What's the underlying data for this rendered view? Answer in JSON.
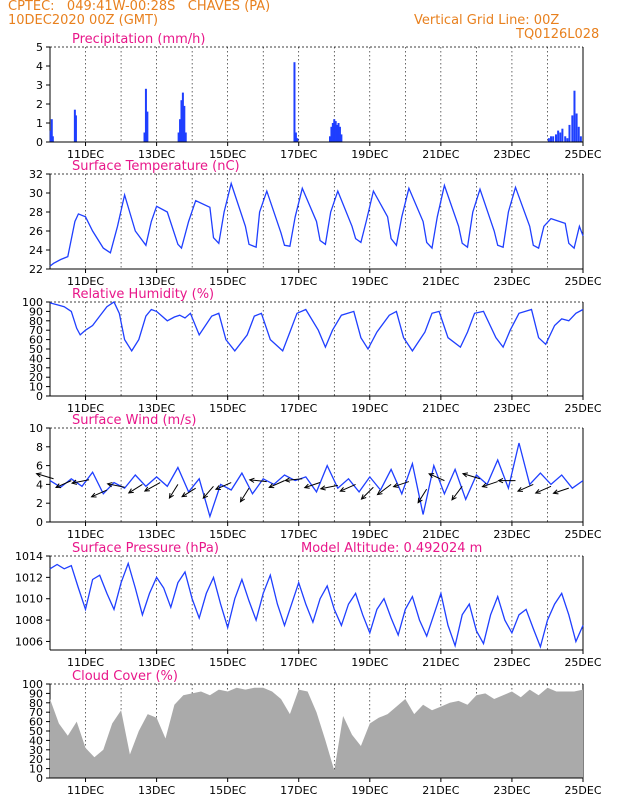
{
  "header": {
    "line1": "CPTEC:   049:41W-00:28S   CHAVES (PA)",
    "line2": "10DEC2020 00Z (GMT)",
    "right1": "Vertical Grid Line: 00Z",
    "right2": "TQ0126L028"
  },
  "colors": {
    "header": "#e8801e",
    "title": "#e8178a",
    "series": "#1f3fff",
    "cloud": "#aaaaaa",
    "axis": "#000000"
  },
  "x_axis": {
    "start": "10DEC 00Z",
    "end": "25DEC 00Z",
    "tick_labels": [
      "11DEC",
      "13DEC",
      "15DEC",
      "17DEC",
      "19DEC",
      "21DEC",
      "23DEC",
      "25DEC"
    ],
    "tick_days": [
      1,
      3,
      5,
      7,
      9,
      11,
      13,
      15
    ],
    "vertical_grid": "00Z daily"
  },
  "chart_data": [
    {
      "id": "precip",
      "type": "bar",
      "title": "Precipitation (mm/h)",
      "ylim": [
        0,
        5
      ],
      "yticks": [
        0,
        1,
        2,
        3,
        4,
        5
      ],
      "x": [
        0.02,
        0.05,
        0.08,
        0.7,
        0.73,
        2.66,
        2.7,
        2.74,
        3.62,
        3.66,
        3.7,
        3.74,
        3.78,
        3.82,
        6.88,
        6.92,
        6.96,
        7.88,
        7.92,
        7.96,
        8.0,
        8.04,
        8.08,
        8.12,
        8.16,
        8.2,
        14.04,
        14.1,
        14.16,
        14.24,
        14.3,
        14.36,
        14.42,
        14.5,
        14.56,
        14.62,
        14.7,
        14.76,
        14.82,
        14.88,
        14.94
      ],
      "values": [
        0.6,
        1.2,
        0.3,
        1.7,
        1.4,
        0.5,
        2.8,
        1.6,
        0.5,
        1.2,
        2.2,
        2.6,
        1.9,
        0.5,
        4.2,
        0.5,
        0.2,
        0.3,
        0.8,
        1.0,
        1.2,
        1.1,
        0.9,
        1.0,
        0.8,
        0.4,
        0.2,
        0.3,
        0.3,
        0.4,
        0.6,
        0.5,
        0.7,
        0.3,
        0.2,
        0.9,
        1.4,
        2.7,
        1.5,
        0.8,
        0.3
      ]
    },
    {
      "id": "temp",
      "type": "line",
      "title": "Surface Temperature (nC)",
      "ylim": [
        22,
        32
      ],
      "yticks": [
        22,
        24,
        26,
        28,
        30,
        32
      ],
      "x": [
        0,
        0.1,
        0.3,
        0.5,
        0.7,
        0.8,
        1.0,
        1.2,
        1.5,
        1.7,
        1.9,
        2.1,
        2.4,
        2.7,
        2.85,
        3.0,
        3.3,
        3.6,
        3.7,
        3.9,
        4.1,
        4.5,
        4.6,
        4.75,
        4.9,
        5.1,
        5.5,
        5.6,
        5.8,
        5.9,
        6.1,
        6.5,
        6.6,
        6.75,
        6.9,
        7.1,
        7.5,
        7.6,
        7.75,
        7.9,
        8.1,
        8.5,
        8.6,
        8.75,
        8.9,
        9.1,
        9.5,
        9.6,
        9.75,
        9.9,
        10.1,
        10.5,
        10.6,
        10.75,
        10.9,
        11.1,
        11.5,
        11.6,
        11.75,
        11.9,
        12.1,
        12.5,
        12.6,
        12.75,
        12.9,
        13.1,
        13.5,
        13.6,
        13.75,
        13.9,
        14.1,
        14.5,
        14.6,
        14.75,
        14.9,
        15.0
      ],
      "values": [
        22.3,
        22.6,
        23.0,
        23.3,
        27.0,
        27.8,
        27.5,
        26.0,
        24.2,
        23.7,
        26.5,
        29.8,
        26.0,
        24.5,
        27.0,
        28.6,
        28.0,
        24.6,
        24.2,
        27.0,
        29.2,
        28.5,
        25.3,
        24.7,
        28.0,
        31.0,
        26.5,
        24.6,
        24.3,
        28.0,
        30.2,
        25.8,
        24.5,
        24.4,
        27.5,
        30.5,
        27.0,
        25.0,
        24.6,
        28.0,
        30.2,
        26.5,
        25.2,
        24.8,
        27.0,
        30.2,
        27.5,
        25.2,
        24.5,
        27.5,
        30.5,
        27.0,
        24.8,
        24.2,
        27.5,
        30.8,
        26.5,
        24.7,
        24.3,
        28.0,
        30.4,
        26.0,
        24.5,
        24.3,
        28.0,
        30.6,
        26.5,
        24.5,
        24.2,
        26.5,
        27.3,
        26.8,
        24.7,
        24.2,
        26.5,
        25.5
      ]
    },
    {
      "id": "rh",
      "type": "line",
      "title": "Relative Humidity (%)",
      "ylim": [
        0,
        100
      ],
      "yticks": [
        0,
        10,
        20,
        30,
        40,
        50,
        60,
        70,
        80,
        90,
        100
      ],
      "x": [
        0,
        0.2,
        0.4,
        0.6,
        0.75,
        0.85,
        1.0,
        1.2,
        1.4,
        1.6,
        1.8,
        1.95,
        2.1,
        2.3,
        2.5,
        2.7,
        2.85,
        3.0,
        3.3,
        3.5,
        3.65,
        3.8,
        3.95,
        4.2,
        4.55,
        4.75,
        4.95,
        5.2,
        5.55,
        5.75,
        5.95,
        6.2,
        6.55,
        6.75,
        6.95,
        7.2,
        7.55,
        7.75,
        7.95,
        8.2,
        8.55,
        8.75,
        8.95,
        9.2,
        9.55,
        9.75,
        9.95,
        10.2,
        10.55,
        10.75,
        10.95,
        11.2,
        11.55,
        11.75,
        11.95,
        12.2,
        12.55,
        12.75,
        12.95,
        13.2,
        13.55,
        13.75,
        13.95,
        14.2,
        14.4,
        14.6,
        14.8,
        15.0
      ],
      "values": [
        99,
        97,
        95,
        90,
        72,
        65,
        70,
        75,
        85,
        95,
        100,
        88,
        60,
        48,
        60,
        85,
        92,
        90,
        80,
        84,
        86,
        83,
        88,
        65,
        85,
        88,
        60,
        48,
        65,
        85,
        88,
        60,
        48,
        68,
        88,
        92,
        70,
        52,
        70,
        86,
        90,
        62,
        50,
        68,
        86,
        90,
        62,
        48,
        68,
        88,
        90,
        62,
        52,
        68,
        88,
        90,
        62,
        52,
        70,
        88,
        92,
        62,
        55,
        75,
        82,
        80,
        88,
        92
      ]
    },
    {
      "id": "wind",
      "type": "line",
      "title": "Surface Wind (m/s)",
      "ylim": [
        0,
        10
      ],
      "yticks": [
        0,
        2,
        4,
        6,
        8,
        10
      ],
      "x": [
        0,
        0.3,
        0.6,
        0.9,
        1.2,
        1.5,
        1.8,
        2.1,
        2.4,
        2.7,
        3.0,
        3.3,
        3.6,
        3.9,
        4.2,
        4.5,
        4.8,
        5.1,
        5.4,
        5.7,
        6.0,
        6.3,
        6.6,
        6.9,
        7.2,
        7.5,
        7.8,
        8.1,
        8.4,
        8.7,
        9.0,
        9.3,
        9.6,
        9.9,
        10.2,
        10.5,
        10.8,
        11.1,
        11.4,
        11.7,
        12.0,
        12.3,
        12.6,
        12.9,
        13.2,
        13.5,
        13.8,
        14.1,
        14.4,
        14.7,
        15.0
      ],
      "values": [
        4.4,
        3.7,
        4.6,
        3.8,
        5.3,
        3.0,
        4.2,
        3.6,
        5.0,
        3.8,
        4.8,
        3.8,
        5.8,
        3.2,
        4.6,
        0.6,
        4.0,
        3.4,
        5.2,
        3.0,
        4.6,
        4.0,
        5.0,
        4.4,
        4.8,
        3.2,
        6.0,
        3.6,
        4.6,
        3.2,
        4.8,
        3.4,
        5.6,
        3.0,
        6.2,
        0.8,
        6.0,
        3.0,
        5.6,
        2.4,
        5.0,
        4.0,
        6.6,
        3.6,
        8.4,
        4.0,
        5.2,
        4.0,
        5.0,
        3.6,
        4.4
      ],
      "barbs": [
        {
          "x": 0.1,
          "speed": 4.6,
          "dx": -1.0,
          "dy": 0.3
        },
        {
          "x": 0.6,
          "speed": 4.4,
          "dx": -0.9,
          "dy": -0.4
        },
        {
          "x": 1.1,
          "speed": 4.5,
          "dx": -1.0,
          "dy": -0.2
        },
        {
          "x": 1.6,
          "speed": 3.4,
          "dx": -0.9,
          "dy": -0.4
        },
        {
          "x": 2.1,
          "speed": 3.7,
          "dx": -1.0,
          "dy": 0.2
        },
        {
          "x": 2.6,
          "speed": 4.0,
          "dx": -0.8,
          "dy": -0.5
        },
        {
          "x": 3.1,
          "speed": 4.2,
          "dx": -0.9,
          "dy": -0.5
        },
        {
          "x": 3.6,
          "speed": 4.0,
          "dx": -0.5,
          "dy": -0.8
        },
        {
          "x": 4.1,
          "speed": 3.6,
          "dx": -0.8,
          "dy": -0.5
        },
        {
          "x": 4.6,
          "speed": 3.8,
          "dx": -0.6,
          "dy": -0.7
        },
        {
          "x": 5.1,
          "speed": 4.2,
          "dx": -0.9,
          "dy": -0.4
        },
        {
          "x": 5.6,
          "speed": 3.6,
          "dx": -0.5,
          "dy": -0.8
        },
        {
          "x": 6.1,
          "speed": 4.3,
          "dx": -1.0,
          "dy": 0.1
        },
        {
          "x": 6.6,
          "speed": 4.4,
          "dx": -0.9,
          "dy": -0.4
        },
        {
          "x": 7.1,
          "speed": 4.6,
          "dx": -1.0,
          "dy": -0.1
        },
        {
          "x": 7.6,
          "speed": 4.2,
          "dx": -0.9,
          "dy": -0.3
        },
        {
          "x": 8.1,
          "speed": 3.9,
          "dx": -1.0,
          "dy": -0.2
        },
        {
          "x": 8.6,
          "speed": 4.0,
          "dx": -0.9,
          "dy": -0.4
        },
        {
          "x": 9.1,
          "speed": 3.7,
          "dx": -0.7,
          "dy": -0.7
        },
        {
          "x": 9.6,
          "speed": 4.0,
          "dx": -0.8,
          "dy": -0.6
        },
        {
          "x": 10.1,
          "speed": 4.3,
          "dx": -0.9,
          "dy": -0.3
        },
        {
          "x": 10.6,
          "speed": 3.5,
          "dx": -0.5,
          "dy": -0.8
        },
        {
          "x": 11.1,
          "speed": 4.4,
          "dx": -0.9,
          "dy": 0.4
        },
        {
          "x": 11.6,
          "speed": 3.8,
          "dx": -0.6,
          "dy": -0.8
        },
        {
          "x": 12.1,
          "speed": 4.6,
          "dx": -1.0,
          "dy": 0.3
        },
        {
          "x": 12.6,
          "speed": 4.3,
          "dx": -0.9,
          "dy": -0.3
        },
        {
          "x": 13.1,
          "speed": 4.4,
          "dx": -1.0,
          "dy": 0.0
        },
        {
          "x": 13.6,
          "speed": 4.0,
          "dx": -0.9,
          "dy": -0.4
        },
        {
          "x": 14.1,
          "speed": 3.8,
          "dx": -0.9,
          "dy": -0.4
        },
        {
          "x": 14.6,
          "speed": 3.6,
          "dx": -0.9,
          "dy": -0.3
        }
      ]
    },
    {
      "id": "pressure",
      "type": "line",
      "title": "Surface Pressure (hPa)",
      "annotation": "Model Altitude: 0.492024 m",
      "ylim": [
        1005.2,
        1014
      ],
      "yticks": [
        1006,
        1008,
        1010,
        1012,
        1014
      ],
      "x": [
        0,
        0.2,
        0.4,
        0.6,
        0.8,
        1.0,
        1.2,
        1.4,
        1.6,
        1.8,
        2.0,
        2.2,
        2.4,
        2.6,
        2.8,
        3.0,
        3.2,
        3.4,
        3.6,
        3.8,
        4.0,
        4.2,
        4.4,
        4.6,
        4.8,
        5.0,
        5.2,
        5.4,
        5.6,
        5.8,
        6.0,
        6.2,
        6.4,
        6.6,
        6.8,
        7.0,
        7.2,
        7.4,
        7.6,
        7.8,
        8.0,
        8.2,
        8.4,
        8.6,
        8.8,
        9.0,
        9.2,
        9.4,
        9.6,
        9.8,
        10.0,
        10.2,
        10.4,
        10.6,
        10.8,
        11.0,
        11.2,
        11.4,
        11.6,
        11.8,
        12.0,
        12.2,
        12.4,
        12.6,
        12.8,
        13.0,
        13.2,
        13.4,
        13.6,
        13.8,
        14.0,
        14.2,
        14.4,
        14.6,
        14.8,
        15.0
      ],
      "values": [
        1012.8,
        1013.2,
        1012.8,
        1013.1,
        1011.0,
        1009.0,
        1011.8,
        1012.2,
        1010.5,
        1009.0,
        1011.5,
        1013.3,
        1011.0,
        1008.5,
        1010.5,
        1012.0,
        1011.0,
        1009.2,
        1011.5,
        1012.5,
        1010.0,
        1008.2,
        1010.5,
        1012.0,
        1009.5,
        1007.3,
        1010.0,
        1011.8,
        1009.8,
        1008.0,
        1010.5,
        1012.2,
        1009.5,
        1007.5,
        1009.5,
        1011.5,
        1009.5,
        1007.8,
        1010.0,
        1011.2,
        1009.0,
        1007.5,
        1009.5,
        1010.5,
        1008.5,
        1006.8,
        1009.0,
        1010.0,
        1008.2,
        1006.6,
        1009.0,
        1010.2,
        1008.0,
        1006.5,
        1008.5,
        1010.5,
        1007.5,
        1005.6,
        1008.5,
        1009.5,
        1007.0,
        1005.8,
        1008.5,
        1010.2,
        1008.0,
        1006.8,
        1008.5,
        1009.0,
        1007.2,
        1005.5,
        1008.0,
        1009.5,
        1010.5,
        1008.5,
        1006.0,
        1007.5
      ]
    },
    {
      "id": "cloud",
      "type": "area",
      "title": "Cloud Cover (%)",
      "ylim": [
        0,
        100
      ],
      "yticks": [
        0,
        10,
        20,
        30,
        40,
        50,
        60,
        70,
        80,
        90,
        100
      ],
      "x": [
        0,
        0.25,
        0.5,
        0.75,
        1.0,
        1.25,
        1.5,
        1.75,
        2.0,
        2.25,
        2.5,
        2.75,
        3.0,
        3.25,
        3.5,
        3.75,
        4.0,
        4.25,
        4.5,
        4.75,
        5.0,
        5.25,
        5.5,
        5.75,
        6.0,
        6.25,
        6.5,
        6.75,
        7.0,
        7.25,
        7.5,
        7.75,
        8.0,
        8.25,
        8.5,
        8.75,
        9.0,
        9.25,
        9.5,
        9.75,
        10.0,
        10.25,
        10.5,
        10.75,
        11.0,
        11.25,
        11.5,
        11.75,
        12.0,
        12.25,
        12.5,
        12.75,
        13.0,
        13.25,
        13.5,
        13.75,
        14.0,
        14.25,
        14.5,
        14.75,
        15.0
      ],
      "values": [
        84,
        58,
        45,
        60,
        32,
        22,
        30,
        58,
        72,
        25,
        50,
        68,
        64,
        42,
        78,
        88,
        90,
        92,
        88,
        94,
        92,
        96,
        94,
        96,
        96,
        92,
        84,
        68,
        94,
        92,
        70,
        40,
        8,
        66,
        46,
        34,
        58,
        64,
        68,
        76,
        84,
        68,
        78,
        72,
        76,
        80,
        82,
        78,
        88,
        90,
        84,
        88,
        92,
        86,
        94,
        88,
        96,
        92,
        92,
        92,
        94
      ]
    }
  ]
}
